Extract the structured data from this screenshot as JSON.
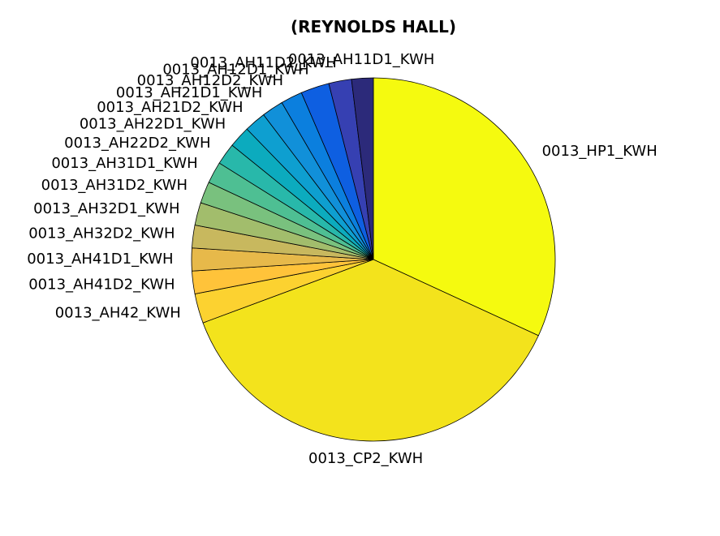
{
  "chart_data": {
    "type": "pie",
    "title": "(REYNOLDS HALL)",
    "start_angle_deg": 90,
    "direction": "clockwise",
    "slices": [
      {
        "label": "0013_HP1_KWH",
        "value": 31.5,
        "color": "#f5fa0f"
      },
      {
        "label": "0013_CP2_KWH",
        "value": 37.0,
        "color": "#f3e31c"
      },
      {
        "label": "0013_AH42_KWH",
        "value": 2.6,
        "color": "#fcd230"
      },
      {
        "label": "0013_AH41D2_KWH",
        "value": 2.0,
        "color": "#ffc33a"
      },
      {
        "label": "0013_AH41D1_KWH",
        "value": 2.0,
        "color": "#e7b94a"
      },
      {
        "label": "0013_AH32D2_KWH",
        "value": 2.0,
        "color": "#c8b85e"
      },
      {
        "label": "0013_AH32D1_KWH",
        "value": 2.0,
        "color": "#a2bd6c"
      },
      {
        "label": "0013_AH31D2_KWH",
        "value": 1.9,
        "color": "#79c17e"
      },
      {
        "label": "0013_AH31D1_KWH",
        "value": 1.9,
        "color": "#4ebf93"
      },
      {
        "label": "0013_AH22D2_KWH",
        "value": 1.9,
        "color": "#28b8aa"
      },
      {
        "label": "0013_AH22D1_KWH",
        "value": 1.9,
        "color": "#0cabbe"
      },
      {
        "label": "0013_AH21D2_KWH",
        "value": 1.9,
        "color": "#0e9fd0"
      },
      {
        "label": "0013_AH21D1_KWH",
        "value": 1.9,
        "color": "#1190d9"
      },
      {
        "label": "0013_AH12D2_KWH",
        "value": 1.9,
        "color": "#0b7fde"
      },
      {
        "label": "0013_AH12D1_KWH",
        "value": 2.5,
        "color": "#0e5fe1"
      },
      {
        "label": "0013_AH11D2_KWH",
        "value": 2.0,
        "color": "#3640b2"
      },
      {
        "label": "0013_AH11D1_KWH",
        "value": 1.9,
        "color": "#2c2a7a"
      }
    ]
  }
}
